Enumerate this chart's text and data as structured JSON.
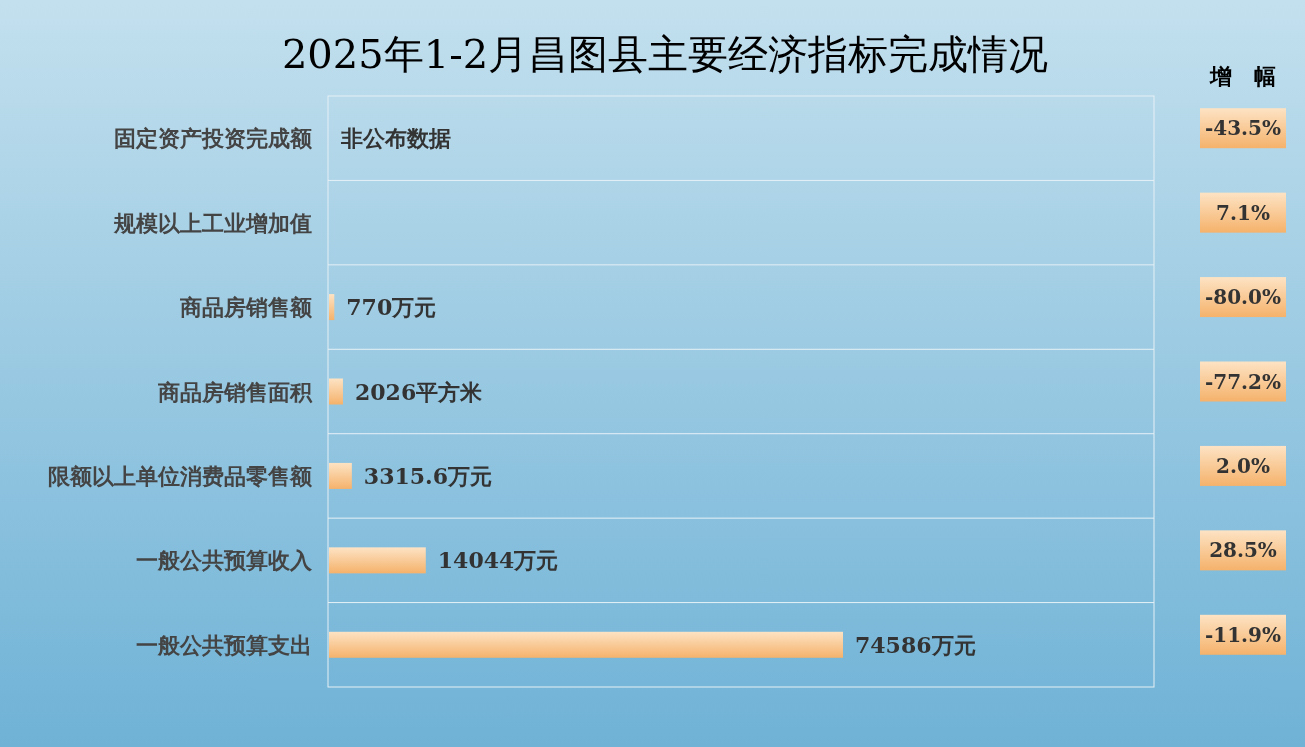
{
  "chart_data": {
    "type": "bar",
    "orientation": "horizontal",
    "title": "2025年1-2月昌图县主要经济指标完成情况",
    "categories": [
      "固定资产投资完成额",
      "规模以上工业增加值",
      "商品房销售额",
      "商品房销售面积",
      "限额以上单位消费品零售额",
      "一般公共预算收入",
      "一般公共预算支出"
    ],
    "values": [
      null,
      null,
      770,
      2026,
      3315.6,
      14044,
      74586
    ],
    "value_labels": [
      "非公布数据",
      null,
      "770万元",
      "2026平方米",
      "3315.6万元",
      "14044万元",
      "74586万元"
    ],
    "color": "#f5b26b",
    "annotations": [
      "增　幅",
      "-43.5%",
      "7.1%",
      "-80.0%",
      "-77.2%",
      "2.0%",
      "28.5%",
      "-11.9%"
    ]
  }
}
